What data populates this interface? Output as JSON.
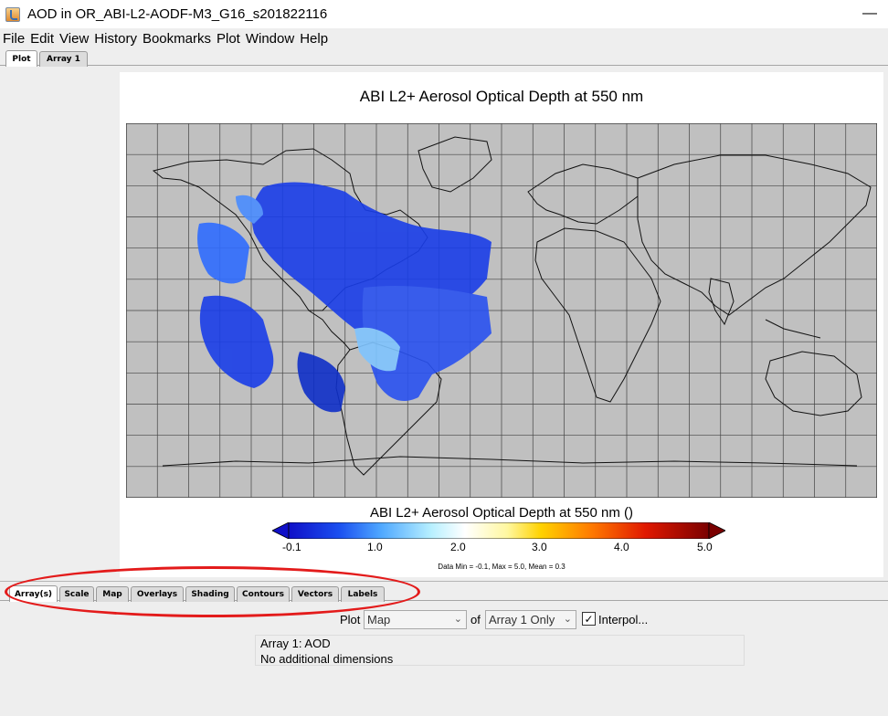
{
  "window": {
    "title": "AOD in OR_ABI-L2-AODF-M3_G16_s201822116",
    "minimize_glyph": "—",
    "icon": "java-cup-icon"
  },
  "menu": [
    "File",
    "Edit",
    "View",
    "History",
    "Bookmarks",
    "Plot",
    "Window",
    "Help"
  ],
  "top_tabs": [
    {
      "label": "Plot",
      "active": true
    },
    {
      "label": "Array 1",
      "active": false
    }
  ],
  "plot": {
    "title": "ABI L2+ Aerosol Optical Depth at 550 nm",
    "colorbar_title": "ABI L2+ Aerosol Optical Depth at 550 nm ()",
    "tick_labels": [
      "-0.1",
      "1.0",
      "2.0",
      "3.0",
      "4.0",
      "5.0"
    ],
    "stats": "Data Min = -0.1, Max = 5.0, Mean = 0.3",
    "map_background": "#c0c0c0",
    "gridline_color": "#444444"
  },
  "bottom_tabs": [
    {
      "label": "Array(s)",
      "active": true
    },
    {
      "label": "Scale",
      "active": false
    },
    {
      "label": "Map",
      "active": false
    },
    {
      "label": "Overlays",
      "active": false
    },
    {
      "label": "Shading",
      "active": false
    },
    {
      "label": "Contours",
      "active": false
    },
    {
      "label": "Vectors",
      "active": false
    },
    {
      "label": "Labels",
      "active": false
    }
  ],
  "controls": {
    "plot_label": "Plot",
    "plot_type_value": "Map",
    "of_label": "of",
    "array_value": "Array 1 Only",
    "interpolate_label": "Interpol...",
    "interpolate_checked": true
  },
  "info": {
    "line1": "Array 1: AOD",
    "line2": "No additional dimensions"
  },
  "annotation": {
    "color": "#e31b1b"
  }
}
